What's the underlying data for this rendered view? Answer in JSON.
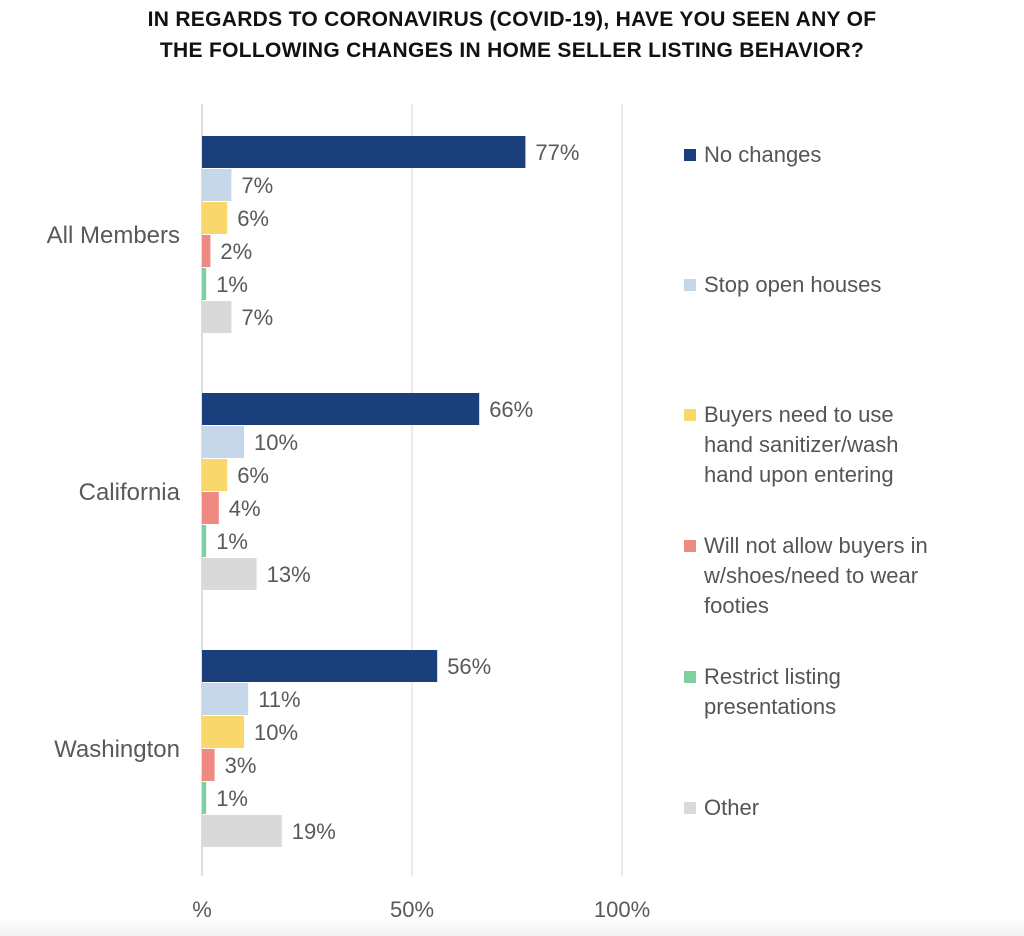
{
  "chart_data": {
    "type": "bar",
    "orientation": "horizontal",
    "title_lines": [
      "IN REGARDS TO CORONAVIRUS (COVID-19), HAVE YOU SEEN ANY OF",
      "THE FOLLOWING CHANGES IN HOME SELLER LISTING BEHAVIOR?"
    ],
    "categories": [
      "All Members",
      "California",
      "Washington"
    ],
    "series": [
      {
        "name": "No changes",
        "color": "#1a3f7a",
        "values": [
          77,
          66,
          56
        ]
      },
      {
        "name": "Stop open houses",
        "color": "#c5d7e9",
        "values": [
          7,
          10,
          11
        ]
      },
      {
        "name": "Buyers need to use\nhand sanitizer/wash\nhand upon entering",
        "color": "#f9d76a",
        "values": [
          6,
          6,
          10
        ]
      },
      {
        "name": "Will not allow buyers in\nw/shoes/need to wear\nfooties",
        "color": "#ef8a82",
        "values": [
          2,
          4,
          3
        ]
      },
      {
        "name": "Restrict listing\npresentations",
        "color": "#7fcfa0",
        "values": [
          1,
          1,
          1
        ]
      },
      {
        "name": "Other",
        "color": "#d9d9d9",
        "values": [
          7,
          13,
          19
        ]
      }
    ],
    "value_suffix": "%",
    "xlim": [
      0,
      100
    ],
    "ticks": [
      0,
      50,
      100
    ],
    "tick_labels": [
      "%",
      "50%",
      "100%"
    ],
    "grid": true,
    "legend_position": "right"
  }
}
